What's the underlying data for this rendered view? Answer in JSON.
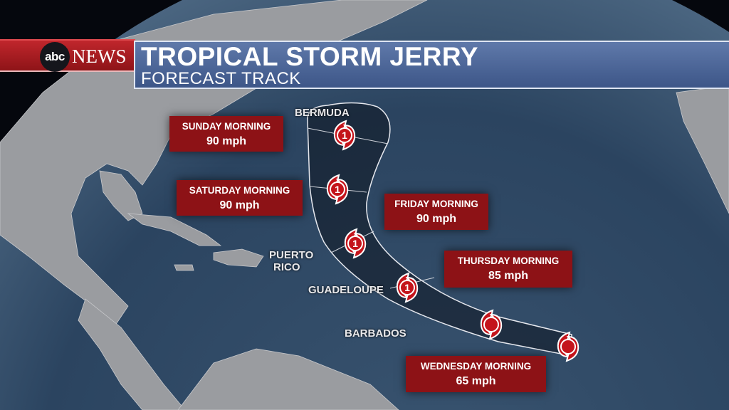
{
  "header": {
    "network_logo": "abc",
    "network_name": "NEWS",
    "title": "TROPICAL STORM JERRY",
    "subtitle": "FORECAST TRACK"
  },
  "colors": {
    "label_bg": "#8d1216",
    "banner_blue": "#4f68a0",
    "banner_red": "#b01e24",
    "ocean": "#2c4560"
  },
  "places": {
    "bermuda": "BERMUDA",
    "puerto_rico_1": "PUERTO",
    "puerto_rico_2": "RICO",
    "guadeloupe": "GUADELOUPE",
    "barbados": "BARBADOS"
  },
  "forecasts": [
    {
      "day": "SUNDAY MORNING",
      "wind": "90 mph"
    },
    {
      "day": "SATURDAY MORNING",
      "wind": "90 mph"
    },
    {
      "day": "FRIDAY MORNING",
      "wind": "90 mph"
    },
    {
      "day": "THURSDAY MORNING",
      "wind": "85 mph"
    },
    {
      "day": "WEDNESDAY MORNING",
      "wind": "65 mph"
    }
  ],
  "storm_points": [
    {
      "icon": "hurricane-icon",
      "category": "1"
    },
    {
      "icon": "hurricane-icon",
      "category": "1"
    },
    {
      "icon": "hurricane-icon",
      "category": "1"
    },
    {
      "icon": "hurricane-icon",
      "category": "1"
    },
    {
      "icon": "tropical-storm-icon",
      "category": ""
    },
    {
      "icon": "tropical-storm-icon",
      "category": ""
    }
  ]
}
